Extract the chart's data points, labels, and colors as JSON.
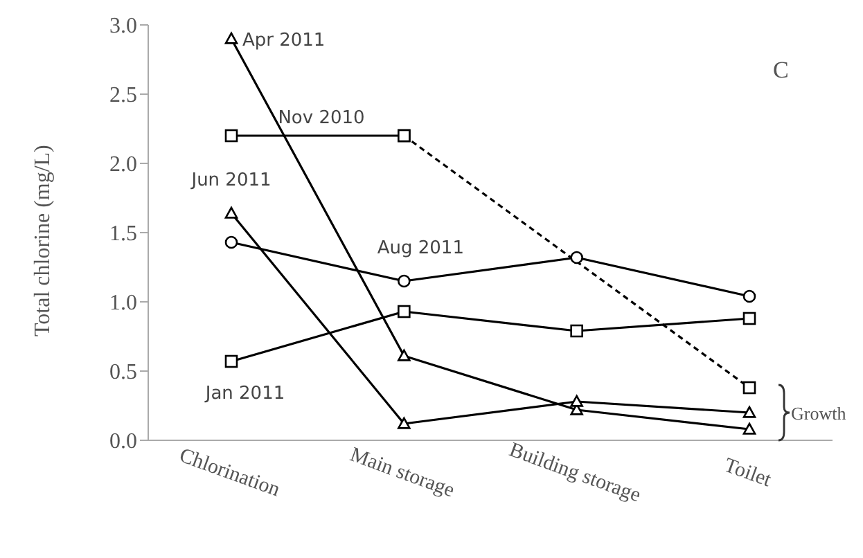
{
  "chart_data": {
    "type": "line",
    "ylabel": "Total chlorine (mg/L)",
    "categories": [
      "Chlorination",
      "Main storage",
      "Building storage",
      "Toilet"
    ],
    "series": [
      {
        "name": "Apr 2011",
        "color": "#000000",
        "marker": "triangle",
        "values": [
          2.9,
          0.61,
          0.22,
          0.08
        ]
      },
      {
        "name": "Nov 2010",
        "color": "#000000",
        "marker": "square",
        "values": [
          2.2,
          2.2,
          null,
          null
        ]
      },
      {
        "color": "#000000",
        "marker": "square",
        "line_style": "dashed",
        "values": [
          null,
          2.2,
          null,
          0.38
        ]
      },
      {
        "name": "Jun 2011",
        "color": "#000000",
        "marker": "triangle",
        "values": [
          1.64,
          0.12,
          0.28,
          0.2
        ]
      },
      {
        "name": "Aug 2011",
        "color": "#000000",
        "marker": "circle",
        "values": [
          1.43,
          1.15,
          1.32,
          1.04
        ]
      },
      {
        "name": "Jan 2011",
        "color": "#000000",
        "marker": "square",
        "values": [
          0.57,
          0.93,
          0.79,
          0.88
        ]
      }
    ],
    "ylim": [
      0,
      3
    ],
    "yticks": [
      {
        "value": 0,
        "label": "0.0"
      },
      {
        "value": 0.5,
        "label": "0.5"
      },
      {
        "value": 1,
        "label": "1.0"
      },
      {
        "value": 1.5,
        "label": "1.5"
      },
      {
        "value": 2,
        "label": "2.0"
      },
      {
        "value": 2.5,
        "label": "2.5"
      },
      {
        "value": 3,
        "label": "3.0"
      }
    ],
    "grid": false,
    "legend": false,
    "line_style": "solid",
    "annotations": [
      "C",
      "Growth"
    ]
  }
}
